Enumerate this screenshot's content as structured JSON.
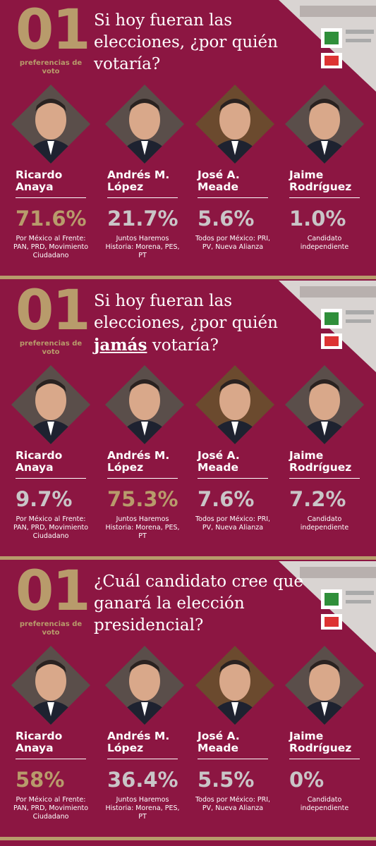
{
  "panels": [
    {
      "number": "01",
      "label": "preferencias de voto",
      "question": [
        "Si hoy fueran las elecciones, ¿por quién votaría?"
      ],
      "emphasis": null,
      "candidates": [
        {
          "name": [
            "Ricardo",
            "Anaya"
          ],
          "percent": "71.6%",
          "color": "#b89b6b",
          "party": "Por México al Frente: PAN, PRD, Movimiento Ciudadano"
        },
        {
          "name": [
            "Andrés M.",
            "López"
          ],
          "percent": "21.7%",
          "color": "#c9c5c7",
          "party": "Juntos Haremos Historia: Morena, PES, PT"
        },
        {
          "name": [
            "José A.",
            "Meade"
          ],
          "percent": "5.6%",
          "color": "#c9c5c7",
          "party": "Todos por México: PRI, PV, Nueva Alianza"
        },
        {
          "name": [
            "Jaime",
            "Rodríguez"
          ],
          "percent": "1.0%",
          "color": "#c9c5c7",
          "party": "Candidato independiente"
        }
      ]
    },
    {
      "number": "01",
      "label": "preferencias de voto",
      "question": [
        "Si hoy fueran las elecciones, ¿por quién ",
        "jamás",
        " votaría?"
      ],
      "emphasis": 1,
      "candidates": [
        {
          "name": [
            "Ricardo",
            "Anaya"
          ],
          "percent": "9.7%",
          "color": "#c9c5c7",
          "party": "Por México al Frente: PAN, PRD, Movimiento Ciudadano"
        },
        {
          "name": [
            "Andrés M.",
            "López"
          ],
          "percent": "75.3%",
          "color": "#b89b6b",
          "party": "Juntos Haremos Historia: Morena, PES, PT"
        },
        {
          "name": [
            "José A.",
            "Meade"
          ],
          "percent": "7.6%",
          "color": "#c9c5c7",
          "party": "Todos por México: PRI, PV, Nueva Alianza"
        },
        {
          "name": [
            "Jaime",
            "Rodríguez"
          ],
          "percent": "7.2%",
          "color": "#c9c5c7",
          "party": "Candidato independiente"
        }
      ]
    },
    {
      "number": "01",
      "label": "preferencias de voto",
      "question": [
        "¿Cuál candidato cree que ganará la elección presidencial?"
      ],
      "emphasis": null,
      "candidates": [
        {
          "name": [
            "Ricardo",
            "Anaya"
          ],
          "percent": "58%",
          "color": "#b89b6b",
          "party": "Por México al Frente: PAN, PRD, Movimiento Ciudadano"
        },
        {
          "name": [
            "Andrés M.",
            "López"
          ],
          "percent": "36.4%",
          "color": "#c9c5c7",
          "party": "Juntos Haremos Historia: Morena, PES, PT"
        },
        {
          "name": [
            "José A.",
            "Meade"
          ],
          "percent": "5.5%",
          "color": "#c9c5c7",
          "party": "Todos por México: PRI, PV, Nueva Alianza"
        },
        {
          "name": [
            "Jaime",
            "Rodríguez"
          ],
          "percent": "0%",
          "color": "#c9c5c7",
          "party": "Candidato independiente"
        }
      ]
    }
  ]
}
